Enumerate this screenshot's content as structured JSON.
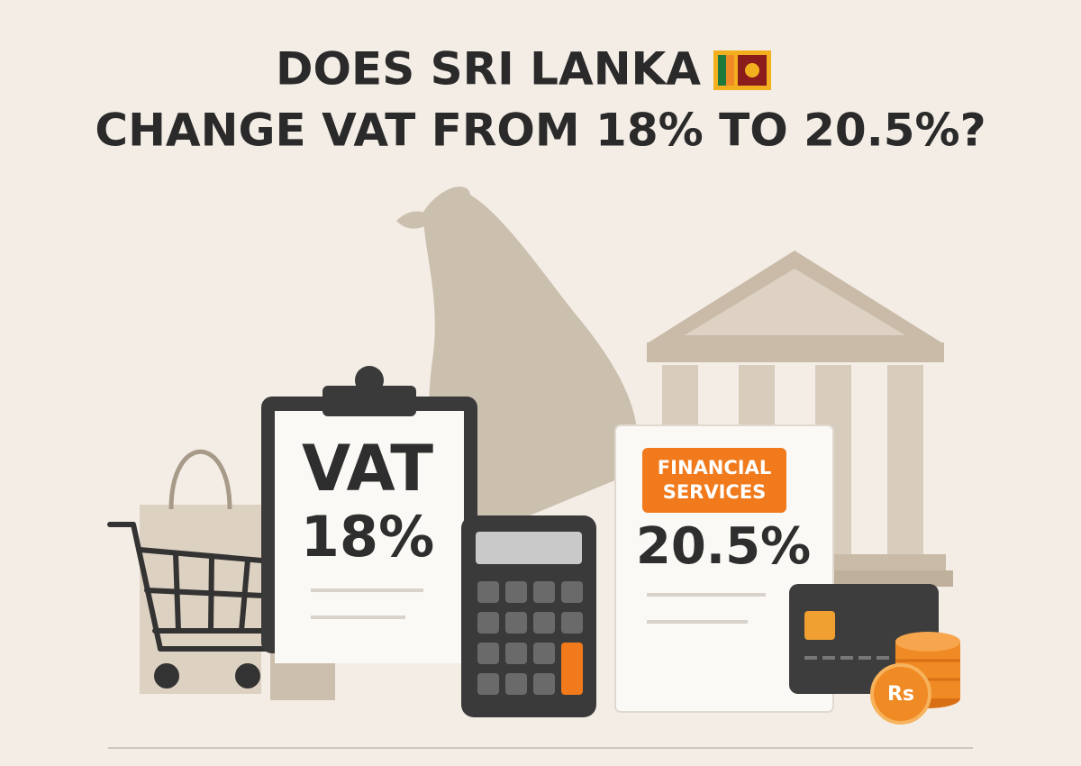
{
  "header": {
    "title_line1": "DOES SRI LANKA",
    "title_line2": "CHANGE VAT FROM 18% TO 20.5%?"
  },
  "clipboard": {
    "label": "VAT",
    "rate": "18%"
  },
  "card": {
    "badge_lines": [
      "FINANCIAL",
      "SERVICES"
    ],
    "rate": "20.5%"
  },
  "coin": {
    "label": "Rs"
  }
}
